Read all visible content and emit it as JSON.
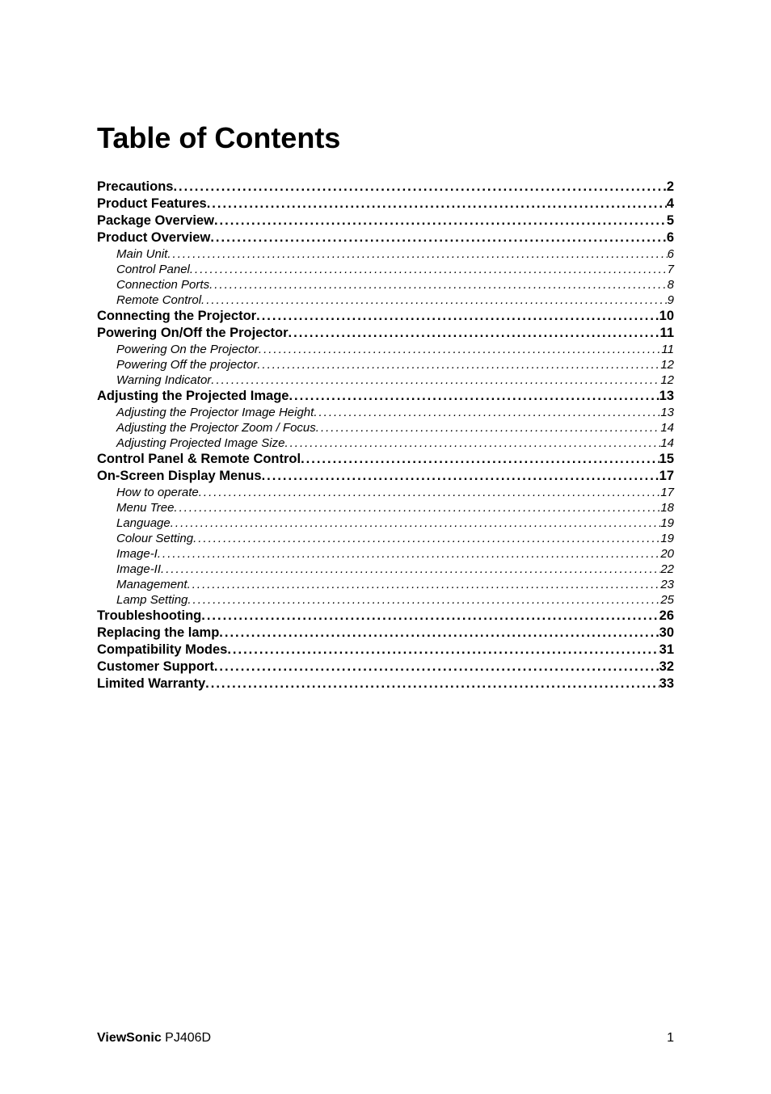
{
  "title": "Table of Contents",
  "toc": [
    {
      "level": 1,
      "label": "Precautions",
      "page": "2"
    },
    {
      "level": 1,
      "label": "Product Features",
      "page": "4"
    },
    {
      "level": 1,
      "label": "Package Overview",
      "page": "5"
    },
    {
      "level": 1,
      "label": "Product Overview",
      "page": "6"
    },
    {
      "level": 2,
      "label": "Main Unit",
      "page": "6"
    },
    {
      "level": 2,
      "label": "Control Panel",
      "page": "7"
    },
    {
      "level": 2,
      "label": "Connection Ports",
      "page": "8"
    },
    {
      "level": 2,
      "label": "Remote Control",
      "page": "9"
    },
    {
      "level": 1,
      "label": "Connecting the Projector",
      "page": "10"
    },
    {
      "level": 1,
      "label": "Powering On/Off the Projector",
      "page": "11"
    },
    {
      "level": 2,
      "label": "Powering On the Projector",
      "page": "11"
    },
    {
      "level": 2,
      "label": "Powering Off the projector",
      "page": "12"
    },
    {
      "level": 2,
      "label": "Warning Indicator",
      "page": "12"
    },
    {
      "level": 1,
      "label": "Adjusting the Projected Image",
      "page": "13"
    },
    {
      "level": 2,
      "label": "Adjusting the Projector Image Height",
      "page": "13"
    },
    {
      "level": 2,
      "label": "Adjusting the Projector Zoom / Focus",
      "page": "14"
    },
    {
      "level": 2,
      "label": "Adjusting Projected Image Size",
      "page": "14"
    },
    {
      "level": 1,
      "label": "Control Panel & Remote Control",
      "page": "15"
    },
    {
      "level": 1,
      "label": "On-Screen Display Menus",
      "page": "17"
    },
    {
      "level": 2,
      "label": "How to operate",
      "page": "17"
    },
    {
      "level": 2,
      "label": "Menu Tree",
      "page": "18"
    },
    {
      "level": 2,
      "label": "Language",
      "page": "19"
    },
    {
      "level": 2,
      "label": "Colour Setting",
      "page": "19"
    },
    {
      "level": 2,
      "label": "Image-I",
      "page": "20"
    },
    {
      "level": 2,
      "label": "Image-II",
      "page": "22"
    },
    {
      "level": 2,
      "label": "Management",
      "page": "23"
    },
    {
      "level": 2,
      "label": "Lamp Setting",
      "page": "25"
    },
    {
      "level": 1,
      "label": "Troubleshooting",
      "page": "26"
    },
    {
      "level": 1,
      "label": "Replacing the lamp",
      "page": "30"
    },
    {
      "level": 1,
      "label": "Compatibility Modes",
      "page": "31"
    },
    {
      "level": 1,
      "label": "Customer Support",
      "page": "32"
    },
    {
      "level": 1,
      "label": "Limited Warranty",
      "page": "33"
    }
  ],
  "footer": {
    "brand_bold": "ViewSonic",
    "brand_rest": " PJ406D",
    "page_number": "1"
  },
  "colors": {
    "text": "#000000",
    "background": "#ffffff"
  },
  "typography": {
    "title_fontsize": 36,
    "level1_fontsize": 16.5,
    "level2_fontsize": 15,
    "footer_fontsize": 16
  }
}
